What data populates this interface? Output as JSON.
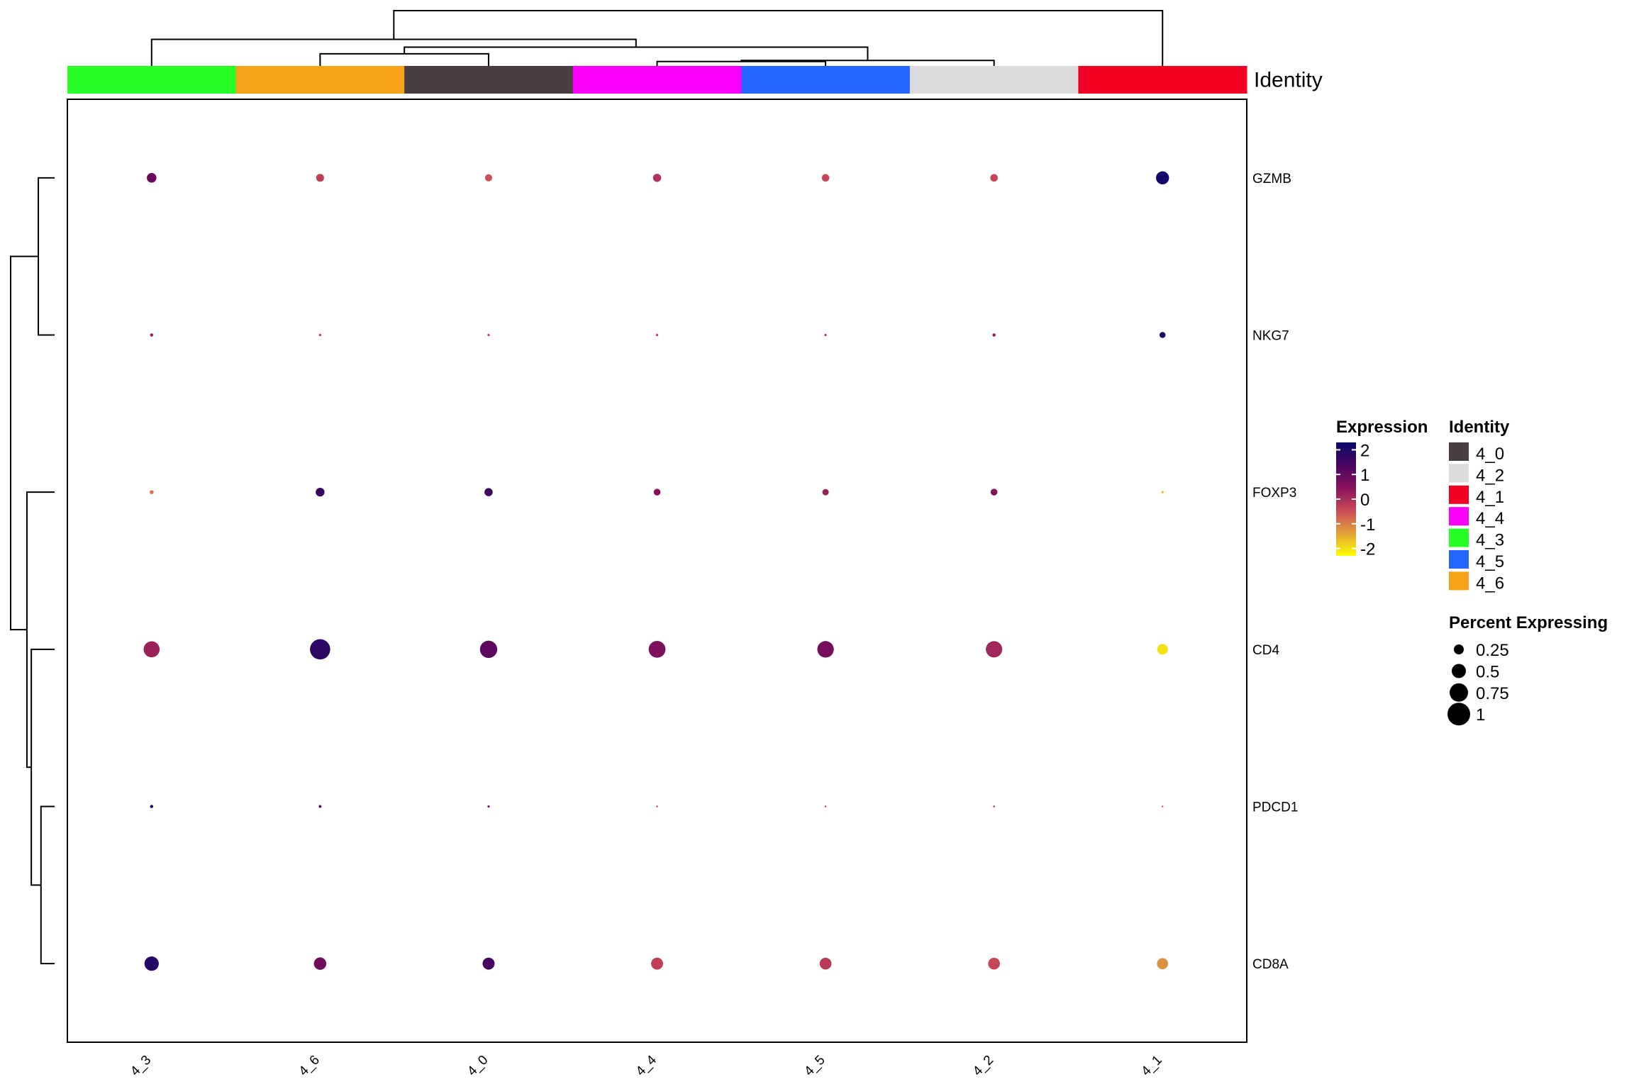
{
  "chart_data": {
    "type": "dotplot",
    "columns": [
      "4_3",
      "4_6",
      "4_0",
      "4_4",
      "4_5",
      "4_2",
      "4_1"
    ],
    "rows": [
      "GZMB",
      "NKG7",
      "FOXP3",
      "CD4",
      "PDCD1",
      "CD8A"
    ],
    "points": [
      {
        "gene": "GZMB",
        "identity": "4_3",
        "expression": 0.9,
        "pct": 0.18
      },
      {
        "gene": "GZMB",
        "identity": "4_6",
        "expression": -0.3,
        "pct": 0.12
      },
      {
        "gene": "GZMB",
        "identity": "4_0",
        "expression": -0.5,
        "pct": 0.1
      },
      {
        "gene": "GZMB",
        "identity": "4_4",
        "expression": -0.1,
        "pct": 0.13
      },
      {
        "gene": "GZMB",
        "identity": "4_5",
        "expression": -0.4,
        "pct": 0.11
      },
      {
        "gene": "GZMB",
        "identity": "4_2",
        "expression": -0.4,
        "pct": 0.11
      },
      {
        "gene": "GZMB",
        "identity": "4_1",
        "expression": 2.2,
        "pct": 0.33
      },
      {
        "gene": "NKG7",
        "identity": "4_3",
        "expression": 0.2,
        "pct": 0.02
      },
      {
        "gene": "NKG7",
        "identity": "4_6",
        "expression": -0.2,
        "pct": 0.01
      },
      {
        "gene": "NKG7",
        "identity": "4_0",
        "expression": -0.2,
        "pct": 0.01
      },
      {
        "gene": "NKG7",
        "identity": "4_4",
        "expression": -0.2,
        "pct": 0.01
      },
      {
        "gene": "NKG7",
        "identity": "4_5",
        "expression": -0.1,
        "pct": 0.01
      },
      {
        "gene": "NKG7",
        "identity": "4_2",
        "expression": 0.3,
        "pct": 0.02
      },
      {
        "gene": "NKG7",
        "identity": "4_1",
        "expression": 2.2,
        "pct": 0.07
      },
      {
        "gene": "FOXP3",
        "identity": "4_3",
        "expression": -0.9,
        "pct": 0.03
      },
      {
        "gene": "FOXP3",
        "identity": "4_6",
        "expression": 1.6,
        "pct": 0.15
      },
      {
        "gene": "FOXP3",
        "identity": "4_0",
        "expression": 1.5,
        "pct": 0.13
      },
      {
        "gene": "FOXP3",
        "identity": "4_4",
        "expression": 0.5,
        "pct": 0.09
      },
      {
        "gene": "FOXP3",
        "identity": "4_5",
        "expression": 0.2,
        "pct": 0.08
      },
      {
        "gene": "FOXP3",
        "identity": "4_2",
        "expression": 0.5,
        "pct": 0.09
      },
      {
        "gene": "FOXP3",
        "identity": "4_1",
        "expression": -1.6,
        "pct": 0.01
      },
      {
        "gene": "CD4",
        "identity": "4_3",
        "expression": 0.2,
        "pct": 0.5
      },
      {
        "gene": "CD4",
        "identity": "4_6",
        "expression": 1.8,
        "pct": 0.8
      },
      {
        "gene": "CD4",
        "identity": "4_0",
        "expression": 1.1,
        "pct": 0.58
      },
      {
        "gene": "CD4",
        "identity": "4_4",
        "expression": 0.6,
        "pct": 0.55
      },
      {
        "gene": "CD4",
        "identity": "4_5",
        "expression": 0.7,
        "pct": 0.53
      },
      {
        "gene": "CD4",
        "identity": "4_2",
        "expression": 0.1,
        "pct": 0.52
      },
      {
        "gene": "CD4",
        "identity": "4_1",
        "expression": -2.0,
        "pct": 0.22
      },
      {
        "gene": "PDCD1",
        "identity": "4_3",
        "expression": 2.1,
        "pct": 0.02
      },
      {
        "gene": "PDCD1",
        "identity": "4_6",
        "expression": 1.2,
        "pct": 0.015
      },
      {
        "gene": "PDCD1",
        "identity": "4_0",
        "expression": 0.5,
        "pct": 0.01
      },
      {
        "gene": "PDCD1",
        "identity": "4_4",
        "expression": 0.0,
        "pct": 0.005
      },
      {
        "gene": "PDCD1",
        "identity": "4_5",
        "expression": -0.1,
        "pct": 0.005
      },
      {
        "gene": "PDCD1",
        "identity": "4_2",
        "expression": 0.4,
        "pct": 0.005
      },
      {
        "gene": "PDCD1",
        "identity": "4_1",
        "expression": -0.6,
        "pct": 0.003
      },
      {
        "gene": "CD8A",
        "identity": "4_3",
        "expression": 1.9,
        "pct": 0.4
      },
      {
        "gene": "CD8A",
        "identity": "4_6",
        "expression": 0.8,
        "pct": 0.3
      },
      {
        "gene": "CD8A",
        "identity": "4_0",
        "expression": 1.4,
        "pct": 0.28
      },
      {
        "gene": "CD8A",
        "identity": "4_4",
        "expression": -0.3,
        "pct": 0.28
      },
      {
        "gene": "CD8A",
        "identity": "4_5",
        "expression": -0.2,
        "pct": 0.27
      },
      {
        "gene": "CD8A",
        "identity": "4_2",
        "expression": -0.4,
        "pct": 0.27
      },
      {
        "gene": "CD8A",
        "identity": "4_1",
        "expression": -1.2,
        "pct": 0.24
      }
    ],
    "identity_colors": {
      "4_0": "#463e41",
      "4_2": "#dcdadb",
      "4_1": "#f20024",
      "4_4": "#fa00fa",
      "4_3": "#26ff26",
      "4_5": "#2266ff",
      "4_6": "#f6a21a"
    },
    "annotation_label": "Identity",
    "legend_expression": {
      "title": "Expression",
      "ticks": [
        2,
        1,
        0,
        -1,
        -2
      ],
      "tick_labels": [
        "2",
        "1",
        "0",
        "-1",
        "-2"
      ],
      "range": [
        -2.3,
        2.3
      ],
      "colors": [
        "#ffff00",
        "#dfa239",
        "#c94a56",
        "#87125d",
        "#48045e",
        "#0b0a6b"
      ]
    },
    "legend_identity": {
      "title": "Identity",
      "entries": [
        "4_0",
        "4_2",
        "4_1",
        "4_4",
        "4_3",
        "4_5",
        "4_6"
      ]
    },
    "legend_size": {
      "title": "Percent Expressing",
      "values": [
        0.25,
        0.5,
        0.75,
        1
      ],
      "labels": [
        "0.25",
        "0.5",
        "0.75",
        "1"
      ]
    },
    "dendrogram_columns": {
      "merges": [
        [
          "4_4",
          "4_5"
        ],
        [
          "m1",
          "4_2"
        ],
        [
          "4_6",
          "4_0"
        ],
        [
          "m3",
          "m2"
        ],
        [
          "4_3",
          "m4"
        ],
        [
          "m5",
          "4_1"
        ]
      ],
      "heights": [
        0.08,
        0.1,
        0.22,
        0.34,
        0.48,
        1.0
      ]
    },
    "dendrogram_rows": {
      "merges": [
        [
          "GZMB",
          "NKG7"
        ],
        [
          "PDCD1",
          "CD8A"
        ],
        [
          "CD4",
          "m2"
        ],
        [
          "FOXP3",
          "m3"
        ],
        [
          "m1",
          "m4"
        ]
      ],
      "heights": [
        0.37,
        0.31,
        0.53,
        0.63,
        1.0
      ]
    },
    "grid": false
  }
}
